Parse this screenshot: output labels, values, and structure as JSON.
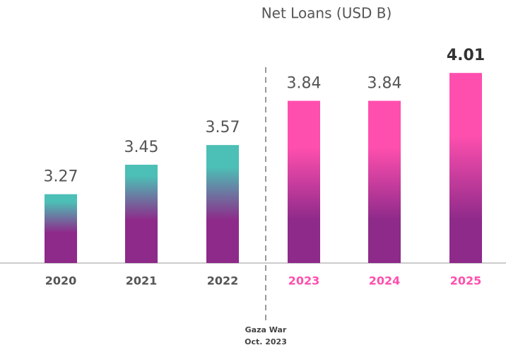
{
  "chart_data": {
    "type": "bar",
    "title": "Net Loans (USD B)",
    "categories": [
      "2020",
      "2021",
      "2022",
      "2023",
      "2024",
      "2025"
    ],
    "values": [
      3.27,
      3.45,
      3.57,
      3.84,
      3.84,
      4.01
    ],
    "colors": [
      "#4cbfb6",
      "#4cbfb6",
      "#4cbfb6",
      "#ff4fae",
      "#ff4fae",
      "#ff4fae"
    ],
    "base_color": "#8e2a8a",
    "ylim": [
      2.85,
      4.11
    ],
    "annotation": [
      "Gaza War",
      "Oct. 2023"
    ]
  }
}
